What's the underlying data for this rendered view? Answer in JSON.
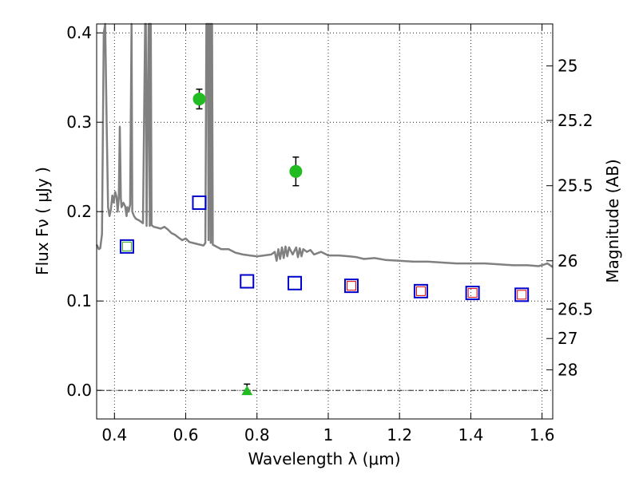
{
  "chart_data": {
    "type": "scatter",
    "xlabel": "Wavelength  λ (μm)",
    "ylabel": "Flux  Fν  ( μJy )",
    "y2label": "Magnitude (AB)",
    "xlim": [
      0.35,
      1.63
    ],
    "ylim": [
      -0.032,
      0.41
    ],
    "x_ticks": [
      0.4,
      0.6,
      0.8,
      1.0,
      1.2,
      1.4,
      1.6
    ],
    "x_tick_labels": [
      "0.4",
      "0.6",
      "0.8",
      "1",
      "1.2",
      "1.4",
      "1.6"
    ],
    "y_ticks": [
      0.0,
      0.1,
      0.2,
      0.3,
      0.4
    ],
    "y_tick_labels": [
      "0.0",
      "0.1",
      "0.2",
      "0.3",
      "0.4"
    ],
    "y2_ticks": [
      {
        "label": "25",
        "flux": 0.363
      },
      {
        "label": "25.2",
        "flux": 0.302
      },
      {
        "label": "25.5",
        "flux": 0.229
      },
      {
        "label": "26",
        "flux": 0.145
      },
      {
        "label": "26.5",
        "flux": 0.091
      },
      {
        "label": "27",
        "flux": 0.058
      },
      {
        "label": "28",
        "flux": 0.023
      }
    ],
    "grid": true,
    "zero_line": true,
    "colors": {
      "template": "#808080",
      "model_square": "#0000cc",
      "inner_red": "#dd0000",
      "inner_green": "#22aa22",
      "detection": "#22bb22",
      "errorbar": "#000000"
    },
    "model_points": [
      {
        "x": 0.435,
        "y": 0.161
      },
      {
        "x": 0.638,
        "y": 0.21
      },
      {
        "x": 0.772,
        "y": 0.122
      },
      {
        "x": 0.906,
        "y": 0.12
      },
      {
        "x": 1.065,
        "y": 0.117
      },
      {
        "x": 1.26,
        "y": 0.111
      },
      {
        "x": 1.405,
        "y": 0.109
      },
      {
        "x": 1.543,
        "y": 0.107
      }
    ],
    "inner_model_points": [
      {
        "x": 0.435,
        "y": 0.161,
        "color": "green"
      },
      {
        "x": 1.065,
        "y": 0.117,
        "color": "red"
      },
      {
        "x": 1.26,
        "y": 0.111,
        "color": "red"
      },
      {
        "x": 1.405,
        "y": 0.109,
        "color": "red"
      },
      {
        "x": 1.543,
        "y": 0.107,
        "color": "red"
      }
    ],
    "detections": [
      {
        "x": 0.638,
        "y": 0.326,
        "yerr": 0.011
      },
      {
        "x": 0.909,
        "y": 0.245,
        "yerr": 0.016
      }
    ],
    "upper_limits": [
      {
        "x": 0.772,
        "y": 0.0,
        "yerr": 0.007
      }
    ],
    "template_spectrum": [
      [
        0.35,
        0.163
      ],
      [
        0.356,
        0.158
      ],
      [
        0.36,
        0.159
      ],
      [
        0.365,
        0.175
      ],
      [
        0.37,
        0.4
      ],
      [
        0.374,
        0.41
      ],
      [
        0.378,
        0.3
      ],
      [
        0.382,
        0.205
      ],
      [
        0.386,
        0.195
      ],
      [
        0.39,
        0.202
      ],
      [
        0.394,
        0.218
      ],
      [
        0.398,
        0.21
      ],
      [
        0.402,
        0.222
      ],
      [
        0.406,
        0.216
      ],
      [
        0.409,
        0.2
      ],
      [
        0.412,
        0.215
      ],
      [
        0.415,
        0.295
      ],
      [
        0.418,
        0.215
      ],
      [
        0.42,
        0.205
      ],
      [
        0.425,
        0.21
      ],
      [
        0.43,
        0.206
      ],
      [
        0.434,
        0.195
      ],
      [
        0.436,
        0.205
      ],
      [
        0.44,
        0.2
      ],
      [
        0.444,
        0.208
      ],
      [
        0.448,
        0.41
      ],
      [
        0.45,
        0.2
      ],
      [
        0.455,
        0.195
      ],
      [
        0.46,
        0.192
      ],
      [
        0.47,
        0.19
      ],
      [
        0.48,
        0.187
      ],
      [
        0.486,
        0.41
      ],
      [
        0.488,
        0.41
      ],
      [
        0.49,
        0.184
      ],
      [
        0.496,
        0.41
      ],
      [
        0.497,
        0.41
      ],
      [
        0.499,
        0.184
      ],
      [
        0.5,
        0.41
      ],
      [
        0.502,
        0.41
      ],
      [
        0.504,
        0.185
      ],
      [
        0.51,
        0.183
      ],
      [
        0.52,
        0.182
      ],
      [
        0.53,
        0.181
      ],
      [
        0.54,
        0.183
      ],
      [
        0.55,
        0.18
      ],
      [
        0.56,
        0.176
      ],
      [
        0.57,
        0.174
      ],
      [
        0.58,
        0.171
      ],
      [
        0.59,
        0.168
      ],
      [
        0.6,
        0.17
      ],
      [
        0.61,
        0.166
      ],
      [
        0.62,
        0.165
      ],
      [
        0.63,
        0.164
      ],
      [
        0.64,
        0.163
      ],
      [
        0.65,
        0.162
      ],
      [
        0.655,
        0.165
      ],
      [
        0.658,
        0.41
      ],
      [
        0.662,
        0.41
      ],
      [
        0.664,
        0.168
      ],
      [
        0.666,
        0.41
      ],
      [
        0.668,
        0.41
      ],
      [
        0.67,
        0.165
      ],
      [
        0.672,
        0.41
      ],
      [
        0.674,
        0.41
      ],
      [
        0.676,
        0.163
      ],
      [
        0.69,
        0.16
      ],
      [
        0.7,
        0.158
      ],
      [
        0.72,
        0.158
      ],
      [
        0.74,
        0.154
      ],
      [
        0.76,
        0.152
      ],
      [
        0.78,
        0.151
      ],
      [
        0.8,
        0.15
      ],
      [
        0.82,
        0.151
      ],
      [
        0.84,
        0.152
      ],
      [
        0.85,
        0.155
      ],
      [
        0.855,
        0.145
      ],
      [
        0.86,
        0.158
      ],
      [
        0.865,
        0.147
      ],
      [
        0.87,
        0.16
      ],
      [
        0.875,
        0.148
      ],
      [
        0.88,
        0.161
      ],
      [
        0.885,
        0.15
      ],
      [
        0.89,
        0.16
      ],
      [
        0.9,
        0.152
      ],
      [
        0.91,
        0.16
      ],
      [
        0.915,
        0.149
      ],
      [
        0.92,
        0.159
      ],
      [
        0.925,
        0.15
      ],
      [
        0.93,
        0.158
      ],
      [
        0.94,
        0.155
      ],
      [
        0.95,
        0.157
      ],
      [
        0.96,
        0.152
      ],
      [
        0.98,
        0.155
      ],
      [
        1.0,
        0.151
      ],
      [
        1.03,
        0.151
      ],
      [
        1.06,
        0.15
      ],
      [
        1.08,
        0.149
      ],
      [
        1.1,
        0.147
      ],
      [
        1.13,
        0.148
      ],
      [
        1.16,
        0.146
      ],
      [
        1.2,
        0.145
      ],
      [
        1.24,
        0.144
      ],
      [
        1.28,
        0.144
      ],
      [
        1.32,
        0.143
      ],
      [
        1.36,
        0.142
      ],
      [
        1.4,
        0.142
      ],
      [
        1.44,
        0.142
      ],
      [
        1.48,
        0.141
      ],
      [
        1.52,
        0.14
      ],
      [
        1.56,
        0.14
      ],
      [
        1.59,
        0.139
      ],
      [
        1.6,
        0.14
      ],
      [
        1.615,
        0.142
      ],
      [
        1.63,
        0.138
      ]
    ]
  }
}
